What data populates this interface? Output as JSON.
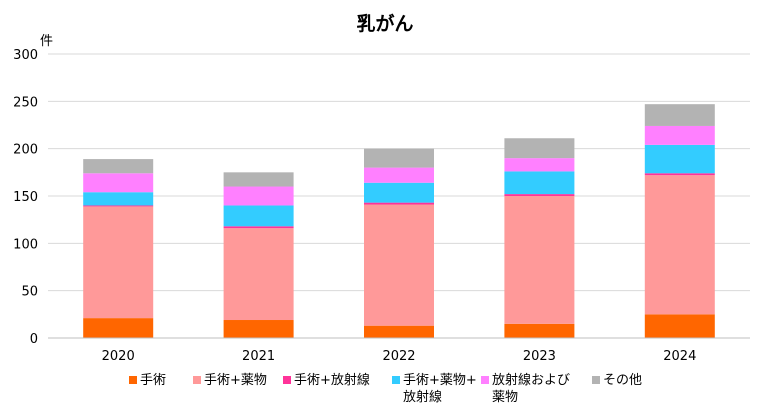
{
  "chart_data": {
    "type": "bar",
    "stacked": true,
    "title": "乳がん",
    "ylabel": "件",
    "xlabel": "",
    "ylim": [
      0,
      300
    ],
    "yticks": [
      0,
      50,
      100,
      150,
      200,
      250,
      300
    ],
    "grid": true,
    "legend_position": "bottom",
    "categories": [
      "2020",
      "2021",
      "2022",
      "2023",
      "2024"
    ],
    "series": [
      {
        "name": "手術",
        "lines": [
          "手術"
        ],
        "color": "#FF6600",
        "values": [
          21,
          19,
          13,
          15,
          25
        ]
      },
      {
        "name": "手術+薬物",
        "lines": [
          "手術+薬物"
        ],
        "color": "#FF9999",
        "values": [
          118,
          97,
          128,
          135,
          147
        ]
      },
      {
        "name": "手術+放射線",
        "lines": [
          "手術+放射線"
        ],
        "color": "#FF3399",
        "values": [
          1,
          2,
          2,
          2,
          2
        ]
      },
      {
        "name": "手術+薬物+放射線",
        "lines": [
          "手術+薬物+",
          "放射線"
        ],
        "color": "#33CCFF",
        "values": [
          14,
          22,
          21,
          24,
          30
        ]
      },
      {
        "name": "放射線および薬物",
        "lines": [
          "放射線および",
          "薬物"
        ],
        "color": "#FF80FF",
        "values": [
          20,
          20,
          16,
          14,
          20
        ]
      },
      {
        "name": "その他",
        "lines": [
          "その他"
        ],
        "color": "#B3B3B3",
        "values": [
          15,
          15,
          20,
          21,
          23
        ]
      }
    ]
  }
}
